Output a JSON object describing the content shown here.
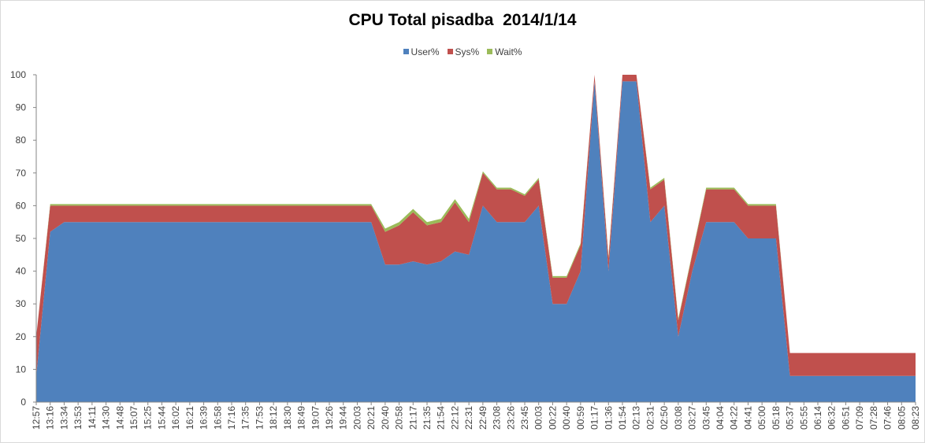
{
  "chart_data": {
    "type": "area",
    "stacked": true,
    "title": "CPU Total pisadba  2014/1/14",
    "xlabel": "",
    "ylabel": "",
    "ylim": [
      0,
      100
    ],
    "yticks": [
      0,
      10,
      20,
      30,
      40,
      50,
      60,
      70,
      80,
      90,
      100
    ],
    "grid": false,
    "legend_position": "top",
    "x_tick_labels": [
      "12:57",
      "13:16",
      "13:34",
      "13:53",
      "14:11",
      "14:30",
      "14:48",
      "15:07",
      "15:25",
      "15:44",
      "16:02",
      "16:21",
      "16:39",
      "16:58",
      "17:16",
      "17:35",
      "17:53",
      "18:12",
      "18:30",
      "18:49",
      "19:07",
      "19:26",
      "19:44",
      "20:03",
      "20:21",
      "20:40",
      "20:58",
      "21:17",
      "21:35",
      "21:54",
      "22:12",
      "22:31",
      "22:49",
      "23:08",
      "23:26",
      "23:45",
      "00:03",
      "00:22",
      "00:40",
      "00:59",
      "01:17",
      "01:36",
      "01:54",
      "02:13",
      "02:31",
      "02:50",
      "03:08",
      "03:27",
      "03:45",
      "04:04",
      "04:22",
      "04:41",
      "05:00",
      "05:18",
      "05:37",
      "05:55",
      "06:14",
      "06:32",
      "06:51",
      "07:09",
      "07:28",
      "07:46",
      "08:05",
      "08:23"
    ],
    "series": [
      {
        "name": "User%",
        "color": "#4f81bd",
        "values": [
          8,
          52,
          55,
          55,
          55,
          55,
          55,
          55,
          55,
          55,
          55,
          55,
          55,
          55,
          55,
          55,
          55,
          55,
          55,
          55,
          55,
          55,
          55,
          55,
          55,
          42,
          42,
          43,
          42,
          43,
          46,
          45,
          60,
          55,
          55,
          55,
          60,
          30,
          30,
          40,
          98,
          40,
          98,
          98,
          55,
          60,
          20,
          40,
          55,
          55,
          55,
          50,
          50,
          50,
          8,
          8,
          8,
          8,
          8,
          8,
          8,
          8,
          8,
          8
        ]
      },
      {
        "name": "Sys%",
        "color": "#c0504d",
        "values": [
          12,
          8,
          5,
          5,
          5,
          5,
          5,
          5,
          5,
          5,
          5,
          5,
          5,
          5,
          5,
          5,
          5,
          5,
          5,
          5,
          5,
          5,
          5,
          5,
          5,
          10,
          12,
          15,
          12,
          12,
          15,
          10,
          10,
          10,
          10,
          8,
          8,
          8,
          8,
          8,
          2,
          4,
          2,
          2,
          10,
          8,
          5,
          5,
          10,
          10,
          10,
          10,
          10,
          10,
          7,
          7,
          7,
          7,
          7,
          7,
          7,
          7,
          7,
          7
        ]
      },
      {
        "name": "Wait%",
        "color": "#9bbb59",
        "values": [
          0,
          0.5,
          0.5,
          0.5,
          0.5,
          0.5,
          0.5,
          0.5,
          0.5,
          0.5,
          0.5,
          0.5,
          0.5,
          0.5,
          0.5,
          0.5,
          0.5,
          0.5,
          0.5,
          0.5,
          0.5,
          0.5,
          0.5,
          0.5,
          0.5,
          1,
          1,
          1,
          1,
          1,
          1,
          1,
          0.5,
          0.5,
          0.5,
          0.5,
          0.5,
          0.5,
          0.5,
          0.5,
          0,
          0.5,
          0,
          0,
          0.5,
          0.5,
          0.5,
          0.5,
          0.5,
          0.5,
          0.5,
          0.5,
          0.5,
          0.5,
          0,
          0,
          0,
          0,
          0,
          0,
          0,
          0,
          0,
          0
        ]
      }
    ]
  }
}
